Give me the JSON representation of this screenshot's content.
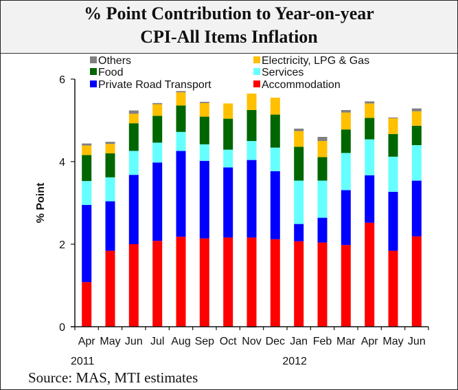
{
  "title_lines": [
    "% Point Contribution to Year-on-year",
    "CPI-All Items Inflation"
  ],
  "source": "Source: MAS, MTI estimates",
  "chart_data": {
    "type": "bar",
    "stacked": true,
    "title": "% Point Contribution to Year-on-year CPI-All Items Inflation",
    "xlabel": "",
    "ylabel": "% Point",
    "ylim": [
      0,
      6
    ],
    "yticks": [
      0,
      2,
      4,
      6
    ],
    "grid": false,
    "legend_position": "top",
    "categories": [
      "Apr",
      "May",
      "Jun",
      "Jul",
      "Aug",
      "Sep",
      "Oct",
      "Nov",
      "Dec",
      "Jan",
      "Feb",
      "Mar",
      "Apr",
      "May",
      "Jun"
    ],
    "year_labels": [
      {
        "label": "2011",
        "index": 0
      },
      {
        "label": "2012",
        "index": 9
      }
    ],
    "series": [
      {
        "name": "Accommodation",
        "color": "#ff0000",
        "values": [
          1.08,
          1.84,
          2.0,
          2.08,
          2.18,
          2.14,
          2.16,
          2.16,
          2.12,
          2.07,
          2.04,
          1.98,
          2.52,
          1.84,
          2.19
        ]
      },
      {
        "name": "Private Road Transport",
        "color": "#0000ff",
        "values": [
          1.87,
          1.2,
          1.68,
          1.9,
          2.08,
          1.88,
          1.7,
          1.88,
          1.65,
          0.42,
          0.6,
          1.33,
          1.15,
          1.43,
          1.35
        ]
      },
      {
        "name": "Services",
        "color": "#66ffff",
        "values": [
          0.58,
          0.58,
          0.58,
          0.48,
          0.46,
          0.4,
          0.43,
          0.46,
          0.57,
          1.05,
          0.9,
          0.9,
          0.87,
          0.85,
          0.86
        ]
      },
      {
        "name": "Food",
        "color": "#006600",
        "values": [
          0.63,
          0.58,
          0.67,
          0.65,
          0.64,
          0.67,
          0.75,
          0.75,
          0.8,
          0.82,
          0.57,
          0.57,
          0.52,
          0.55,
          0.47
        ]
      },
      {
        "name": "Electricity, LPG & Gas",
        "color": "#ffc000",
        "values": [
          0.23,
          0.23,
          0.23,
          0.28,
          0.32,
          0.33,
          0.37,
          0.4,
          0.41,
          0.38,
          0.39,
          0.41,
          0.35,
          0.38,
          0.35
        ]
      },
      {
        "name": "Others",
        "color": "#808080",
        "values": [
          0.05,
          0.05,
          0.08,
          0.03,
          0.03,
          0.03,
          0.0,
          -0.02,
          0.0,
          0.06,
          0.1,
          0.06,
          0.05,
          0.02,
          0.07
        ]
      }
    ],
    "legend": [
      {
        "name": "Others",
        "color": "#808080"
      },
      {
        "name": "Electricity, LPG & Gas",
        "color": "#ffc000"
      },
      {
        "name": "Food",
        "color": "#006600"
      },
      {
        "name": "Services",
        "color": "#66ffff"
      },
      {
        "name": "Private Road Transport",
        "color": "#0000ff"
      },
      {
        "name": "Accommodation",
        "color": "#ff0000"
      }
    ]
  }
}
